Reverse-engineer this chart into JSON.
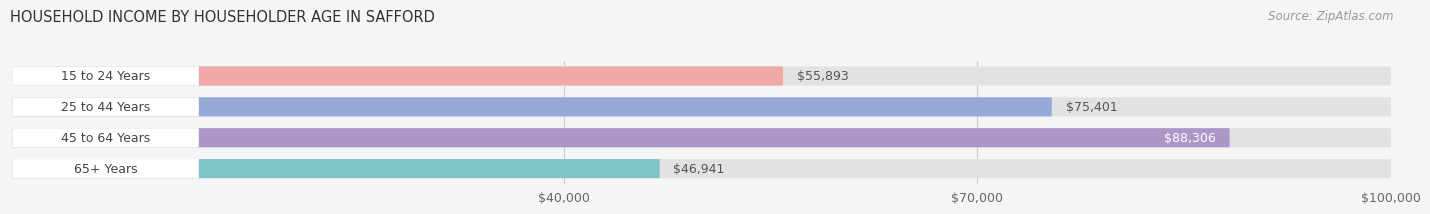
{
  "title": "HOUSEHOLD INCOME BY HOUSEHOLDER AGE IN SAFFORD",
  "source": "Source: ZipAtlas.com",
  "categories": [
    "15 to 24 Years",
    "25 to 44 Years",
    "45 to 64 Years",
    "65+ Years"
  ],
  "values": [
    55893,
    75401,
    88306,
    46941
  ],
  "bar_colors": [
    "#f2a8a6",
    "#95aad9",
    "#ad97c9",
    "#7dc5c8"
  ],
  "bar_labels": [
    "$55,893",
    "$75,401",
    "$88,306",
    "$46,941"
  ],
  "label_inside": [
    false,
    false,
    true,
    false
  ],
  "xlim": [
    0,
    100000
  ],
  "xticks": [
    40000,
    70000,
    100000
  ],
  "xticklabels": [
    "$40,000",
    "$70,000",
    "$100,000"
  ],
  "background_color": "#f5f5f5",
  "bar_bg_color": "#e2e2e2",
  "title_fontsize": 10.5,
  "source_fontsize": 8.5,
  "tick_fontsize": 9,
  "label_fontsize": 9,
  "category_fontsize": 9
}
